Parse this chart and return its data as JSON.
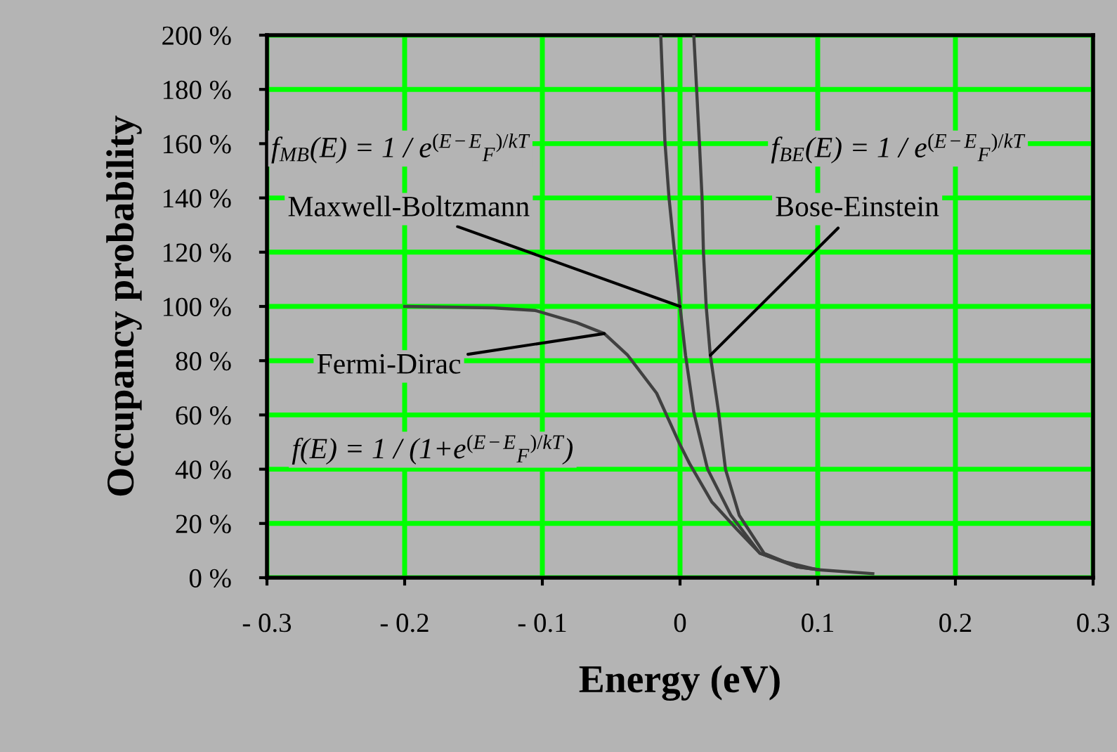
{
  "chart_data": {
    "type": "line",
    "xlabel": "Energy (eV)",
    "ylabel": "Occupancy probability",
    "xlim": [
      -0.3,
      0.3
    ],
    "ylim": [
      0,
      200
    ],
    "xticks": [
      {
        "value": -0.3,
        "label": "- 0.3"
      },
      {
        "value": -0.2,
        "label": "- 0.2"
      },
      {
        "value": -0.1,
        "label": "- 0.1"
      },
      0,
      0.1,
      0.2,
      0.3
    ],
    "yticks": [
      {
        "value": 0,
        "label": "0 %"
      },
      {
        "value": 20,
        "label": "20 %"
      },
      {
        "value": 40,
        "label": "40 %"
      },
      {
        "value": 60,
        "label": "60 %"
      },
      {
        "value": 80,
        "label": "80 %"
      },
      {
        "value": 100,
        "label": "100 %"
      },
      {
        "value": 120,
        "label": "120 %"
      },
      {
        "value": 140,
        "label": "140 %"
      },
      {
        "value": 160,
        "label": "160 %"
      },
      {
        "value": 180,
        "label": "180 %"
      },
      {
        "value": 200,
        "label": "200 %"
      }
    ],
    "grid": true,
    "marker": "none",
    "line_style": "solid",
    "series": [
      {
        "color": "#404040",
        "x": [
          -0.2,
          -0.136,
          -0.105,
          -0.075,
          -0.055,
          -0.038,
          -0.017,
          0,
          0.007,
          0.023,
          0.041,
          0.058,
          0.075,
          0.099,
          0.14
        ],
        "values": [
          100,
          99.5,
          98.5,
          94,
          90,
          82,
          68,
          49,
          42,
          28,
          18,
          9,
          6,
          3,
          1.5
        ]
      },
      {
        "color": "#404040",
        "x": [
          -0.014,
          -0.011,
          -0.008,
          -0.004,
          0,
          0.004,
          0.01,
          0.02,
          0.037,
          0.058,
          0.085,
          0.1
        ],
        "values": [
          200,
          161,
          140,
          120,
          100,
          82,
          61,
          40,
          23,
          9,
          4,
          3
        ]
      },
      {
        "color": "#404040",
        "x": [
          0.01,
          0.014,
          0.016,
          0.017,
          0.019,
          0.022,
          0.028,
          0.033,
          0.043,
          0.061,
          0.085,
          0.1
        ],
        "values": [
          200,
          161,
          140,
          120,
          100,
          82,
          61,
          40,
          23,
          9,
          4,
          3
        ]
      }
    ],
    "annotations": [
      {
        "text": "Maxwell-Boltzmann",
        "x": 0,
        "y": 100
      },
      {
        "text": "Bose-Einstein",
        "x": 0.022,
        "y": 82
      },
      {
        "text": "Fermi-Dirac",
        "x": -0.055,
        "y": 90
      },
      "f$_{MB}$(E) = 1 / e$^{(E−E}$$_{F}$$^{)/kT}$",
      "f$_{BE}$(E) = 1 / e$^{(E−E}$$_{F}$$^{)/kT}$",
      "f(E) = 1 / (1+e$^{(E−E}$$_{F}$$^{)/kT}$)"
    ]
  }
}
